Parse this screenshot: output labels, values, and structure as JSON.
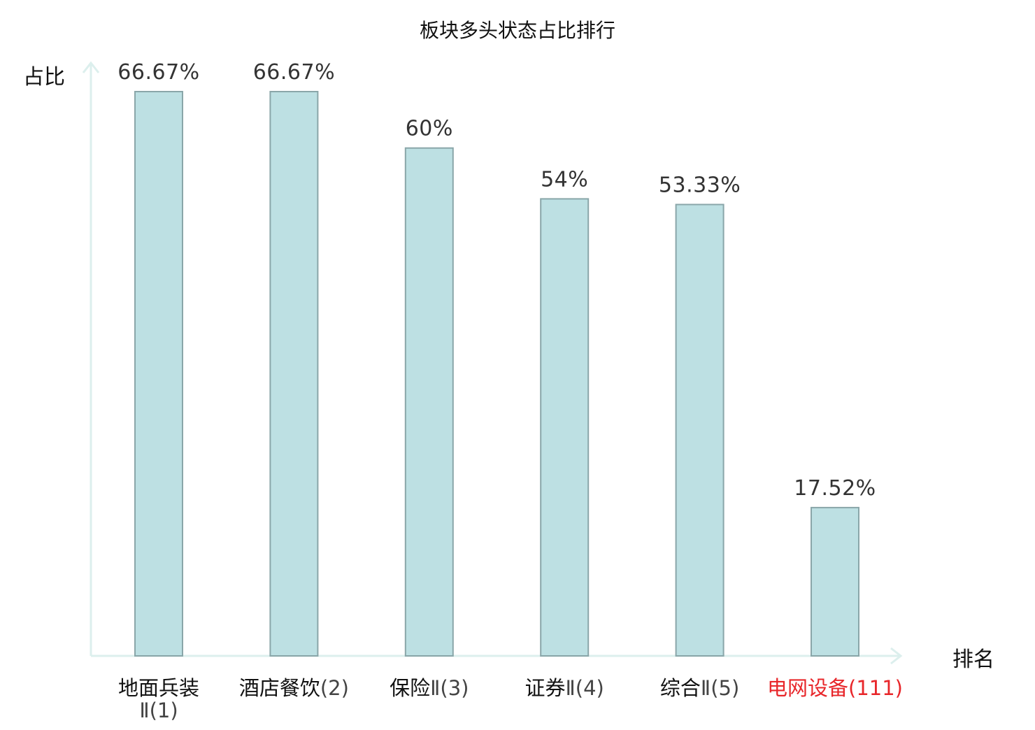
{
  "chart_data": {
    "type": "bar",
    "title": "板块多头状态占比排行",
    "ylabel": "占比",
    "xlabel": "排名",
    "ylim": [
      0,
      70
    ],
    "grid": false,
    "legend": "none",
    "categories": [
      {
        "name": "地面兵装",
        "rank": "Ⅱ(1)",
        "wrap": true,
        "highlight": false
      },
      {
        "name": "酒店餐饮",
        "rank": "(2)",
        "wrap": false,
        "highlight": false
      },
      {
        "name": "保险",
        "rank": "Ⅱ(3)",
        "wrap": false,
        "highlight": false
      },
      {
        "name": "证券",
        "rank": "Ⅱ(4)",
        "wrap": false,
        "highlight": false
      },
      {
        "name": "综合",
        "rank": "Ⅱ(5)",
        "wrap": false,
        "highlight": false
      },
      {
        "name": "电网设备",
        "rank": "(111)",
        "wrap": false,
        "highlight": true
      }
    ],
    "values": [
      66.67,
      66.67,
      60,
      54,
      53.33,
      17.52
    ],
    "value_labels": [
      "66.67%",
      "66.67%",
      "60%",
      "54%",
      "53.33%",
      "17.52%"
    ],
    "colors": {
      "bar_fill": "#bde0e3",
      "bar_stroke": "#8aa6a9",
      "axis": "#dcefed",
      "highlight_text": "#e8262a"
    }
  }
}
